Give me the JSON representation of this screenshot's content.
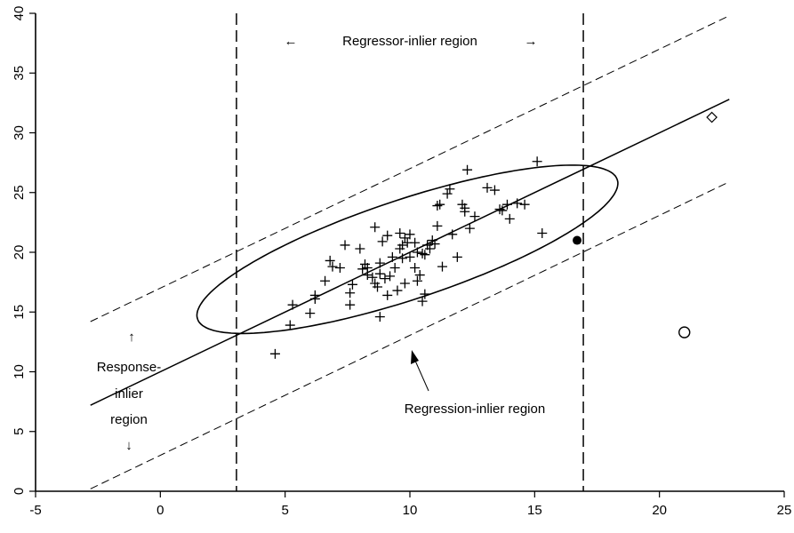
{
  "chart_data": {
    "type": "scatter",
    "title": "",
    "xlabel": "",
    "ylabel": "",
    "xlim": [
      -5,
      25
    ],
    "ylim": [
      0,
      40
    ],
    "x_ticks": [
      -5,
      0,
      5,
      10,
      15,
      20,
      25
    ],
    "y_ticks": [
      0,
      5,
      10,
      15,
      20,
      25,
      30,
      35,
      40
    ],
    "grid": false,
    "legend": "none",
    "regression_line": {
      "x": [
        -2.8,
        22.8
      ],
      "y": [
        7.2,
        32.8
      ]
    },
    "response_bands": [
      {
        "x": [
          -2.8,
          22.8
        ],
        "y": [
          14.2,
          39.8
        ]
      },
      {
        "x": [
          -2.8,
          22.8
        ],
        "y": [
          0.2,
          25.9
        ]
      }
    ],
    "regressor_bounds_x": [
      3.05,
      16.95
    ],
    "ellipse": {
      "center": [
        9.9,
        20.25
      ],
      "angle_deg": 38.5,
      "semi_major": 10.4,
      "semi_minor": 3.55
    },
    "series": [
      {
        "marker": "plus",
        "points": [
          [
            4.6,
            11.5
          ],
          [
            5.2,
            13.9
          ],
          [
            5.3,
            15.6
          ],
          [
            6.0,
            14.9
          ],
          [
            6.2,
            16.4
          ],
          [
            6.2,
            16.1
          ],
          [
            6.6,
            17.6
          ],
          [
            6.8,
            19.3
          ],
          [
            6.9,
            18.8
          ],
          [
            7.2,
            18.7
          ],
          [
            7.4,
            20.6
          ],
          [
            7.6,
            15.6
          ],
          [
            7.6,
            16.6
          ],
          [
            7.7,
            17.3
          ],
          [
            8.0,
            20.3
          ],
          [
            8.1,
            18.6
          ],
          [
            8.2,
            19.0
          ],
          [
            8.3,
            18.1
          ],
          [
            8.3,
            18.7
          ],
          [
            8.5,
            17.9
          ],
          [
            8.6,
            17.4
          ],
          [
            8.6,
            22.1
          ],
          [
            8.7,
            17.1
          ],
          [
            8.8,
            18.2
          ],
          [
            8.8,
            14.6
          ],
          [
            8.8,
            19.1
          ],
          [
            8.9,
            20.9
          ],
          [
            9.0,
            17.8
          ],
          [
            9.1,
            21.4
          ],
          [
            9.1,
            16.4
          ],
          [
            9.2,
            18.0
          ],
          [
            9.3,
            19.6
          ],
          [
            9.4,
            18.7
          ],
          [
            9.5,
            16.8
          ],
          [
            9.6,
            20.3
          ],
          [
            9.6,
            21.6
          ],
          [
            9.7,
            19.5
          ],
          [
            9.7,
            20.6
          ],
          [
            9.8,
            21.2
          ],
          [
            9.8,
            17.4
          ],
          [
            9.9,
            20.8
          ],
          [
            10.0,
            21.5
          ],
          [
            10.0,
            19.6
          ],
          [
            10.2,
            18.7
          ],
          [
            10.2,
            20.8
          ],
          [
            10.3,
            17.6
          ],
          [
            10.3,
            20.0
          ],
          [
            10.4,
            18.1
          ],
          [
            10.5,
            19.9
          ],
          [
            10.5,
            15.9
          ],
          [
            10.6,
            16.5
          ],
          [
            10.6,
            19.8
          ],
          [
            10.7,
            20.6
          ],
          [
            10.8,
            20.3
          ],
          [
            10.9,
            21.0
          ],
          [
            11.0,
            20.7
          ],
          [
            11.1,
            22.2
          ],
          [
            11.1,
            23.9
          ],
          [
            11.2,
            24.0
          ],
          [
            11.3,
            18.8
          ],
          [
            11.5,
            24.9
          ],
          [
            11.6,
            25.3
          ],
          [
            11.7,
            21.5
          ],
          [
            11.9,
            19.6
          ],
          [
            12.1,
            24.0
          ],
          [
            12.2,
            23.7
          ],
          [
            12.2,
            23.4
          ],
          [
            12.3,
            26.9
          ],
          [
            12.4,
            22.0
          ],
          [
            12.6,
            23.0
          ],
          [
            13.1,
            25.4
          ],
          [
            13.4,
            25.2
          ],
          [
            13.6,
            23.6
          ],
          [
            13.7,
            23.5
          ],
          [
            13.9,
            24.0
          ],
          [
            14.0,
            22.8
          ],
          [
            14.3,
            24.1
          ],
          [
            14.6,
            24.0
          ],
          [
            15.1,
            27.6
          ],
          [
            15.3,
            21.6
          ]
        ]
      },
      {
        "marker": "filled-circle",
        "points": [
          [
            16.7,
            21.0
          ]
        ]
      },
      {
        "marker": "open-circle",
        "points": [
          [
            21.0,
            13.3
          ]
        ]
      },
      {
        "marker": "diamond",
        "points": [
          [
            22.1,
            31.3
          ]
        ]
      }
    ],
    "annotations": {
      "regressor": {
        "left_arrow": "←",
        "text": "Regressor-inlier region",
        "right_arrow": "→"
      },
      "response": {
        "up_arrow": "↑",
        "line1": "Response-",
        "line2": "inlier",
        "line3": "region",
        "down_arrow": "↓"
      },
      "regression": {
        "text": "Regression-inlier region"
      }
    }
  }
}
